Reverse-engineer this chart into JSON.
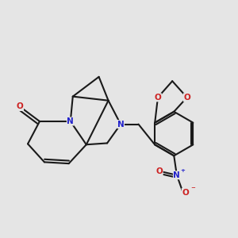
{
  "background_color": "#e5e5e5",
  "bond_color": "#1a1a1a",
  "N_color": "#2222cc",
  "O_color": "#cc2222",
  "bond_lw": 1.5,
  "figsize": [
    3.0,
    3.0
  ],
  "dpi": 100,
  "xlim": [
    0,
    1
  ],
  "ylim": [
    0,
    1
  ]
}
